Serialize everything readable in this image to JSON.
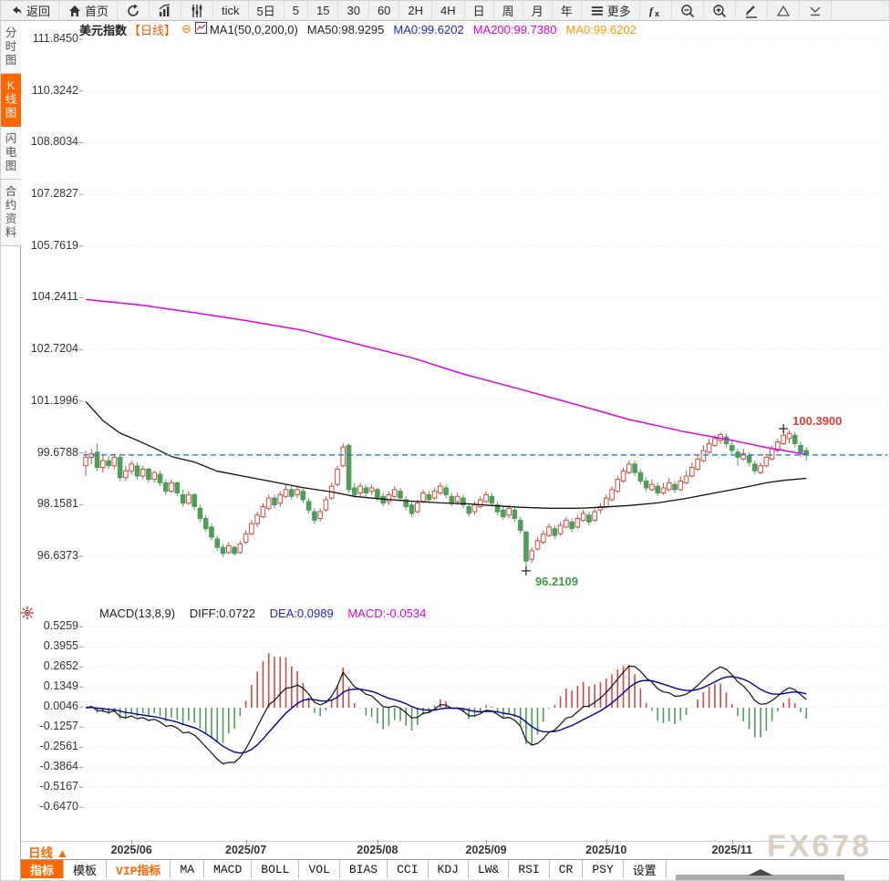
{
  "toolbar": {
    "items": [
      {
        "name": "back-button",
        "icon": "back-icon",
        "label": "返回"
      },
      {
        "name": "home-button",
        "icon": "home-icon",
        "label": "首页"
      },
      {
        "name": "refresh-button",
        "icon": "refresh-icon",
        "label": ""
      },
      {
        "name": "bar-chart-button",
        "icon": "bar-chart-icon",
        "label": ""
      },
      {
        "name": "kline-style-button",
        "icon": "kline-icon",
        "label": ""
      },
      {
        "name": "interval-tick",
        "label": "tick"
      },
      {
        "name": "interval-5d",
        "label": "5日"
      },
      {
        "name": "interval-5",
        "label": "5"
      },
      {
        "name": "interval-15",
        "label": "15"
      },
      {
        "name": "interval-30",
        "label": "30"
      },
      {
        "name": "interval-60",
        "label": "60"
      },
      {
        "name": "interval-2h",
        "label": "2H"
      },
      {
        "name": "interval-day",
        "label": "4H"
      },
      {
        "name": "interval-day2",
        "label": "日"
      },
      {
        "name": "interval-week",
        "label": "周"
      },
      {
        "name": "interval-month",
        "label": "月"
      },
      {
        "name": "interval-year",
        "label": "年"
      },
      {
        "name": "more-button",
        "icon": "menu-icon",
        "label": "更多"
      },
      {
        "name": "indicator-fx-button",
        "icon": "fx-icon",
        "label": ""
      },
      {
        "name": "zoom-out-button",
        "icon": "zoom-out-icon",
        "label": ""
      },
      {
        "name": "zoom-in-button",
        "icon": "zoom-in-icon",
        "label": ""
      },
      {
        "name": "draw-button",
        "icon": "pencil-icon",
        "label": ""
      },
      {
        "name": "triangle-up-button",
        "icon": "triangle-up-icon",
        "label": ""
      },
      {
        "name": "collapse-button",
        "icon": "collapse-icon",
        "label": ""
      }
    ]
  },
  "sidebar": {
    "items": [
      {
        "label": "分时图",
        "active": false
      },
      {
        "label": "K线图",
        "active": true
      },
      {
        "label": "闪电图",
        "active": false
      },
      {
        "label": "合约资料",
        "active": false
      }
    ]
  },
  "chart_header": {
    "symbol": "美元指数",
    "period": "【日线】",
    "collapse_glyph": "⊖",
    "ma_settings": "MA1(50,0,200,0)",
    "ma50": "MA50:98.9295",
    "ma0_blue": "MA0:99.6202",
    "ma200": "MA200:99.7380",
    "ma0_orange": "MA0:99.6202"
  },
  "macd_header": {
    "title": "MACD(13,8,9)",
    "diff": "DIFF:0.0722",
    "dea": "DEA:0.0989",
    "macd": "MACD:-0.0534"
  },
  "bottom": {
    "period_button": "日线 ▲",
    "tabs": [
      {
        "label": "指标",
        "style": "active"
      },
      {
        "label": "模板",
        "style": ""
      },
      {
        "label": "VIP指标",
        "style": "vip"
      },
      {
        "label": "MA",
        "style": ""
      },
      {
        "label": "MACD",
        "style": ""
      },
      {
        "label": "BOLL",
        "style": ""
      },
      {
        "label": "VOL",
        "style": ""
      },
      {
        "label": "BIAS",
        "style": ""
      },
      {
        "label": "CCI",
        "style": ""
      },
      {
        "label": "KDJ",
        "style": ""
      },
      {
        "label": "LW&",
        "style": ""
      },
      {
        "label": "RSI",
        "style": ""
      },
      {
        "label": "CR",
        "style": ""
      },
      {
        "label": "PSY",
        "style": ""
      }
    ],
    "settings_tab": "设置"
  },
  "watermark": "FX678",
  "colors": {
    "accent": "#ff6600",
    "up": "#cf4a41",
    "down": "#4f9d58",
    "ma50": "#111111",
    "ma200": "#e400e4",
    "dif_line": "#111111",
    "dea_line": "#00009e",
    "price_line": "#1e7ddd",
    "grid": "#efdede",
    "high_label": "#e03b32",
    "low_label": "#3f9a46"
  },
  "chart_data": {
    "type": "candlestick",
    "title": "美元指数 日线 (US Dollar Index, daily)",
    "y_axis_labels": [
      "111.8450",
      "110.3242",
      "108.8034",
      "107.2827",
      "105.7619",
      "104.2411",
      "102.7204",
      "101.1996",
      "99.6788",
      "98.1581",
      "96.6373"
    ],
    "y_axis_range": [
      96.6373,
      111.845
    ],
    "x_axis": {
      "month_labels": [
        "2025/06",
        "2025/07",
        "2025/08",
        "2025/09",
        "2025/10",
        "2025/11"
      ],
      "month_start_indices": [
        8,
        28,
        51,
        70,
        91,
        113
      ]
    },
    "current_price": 99.6202,
    "high_label": "100.3900",
    "low_label": "96.2109",
    "high_index": 122,
    "low_index": 77,
    "high_value": 100.39,
    "low_value": 96.21,
    "candles": [
      [
        99.3,
        99.75,
        99.0,
        99.55
      ],
      [
        99.55,
        99.8,
        99.35,
        99.65
      ],
      [
        99.7,
        99.95,
        99.15,
        99.25
      ],
      [
        99.25,
        99.6,
        99.1,
        99.45
      ],
      [
        99.45,
        99.6,
        99.2,
        99.3
      ],
      [
        99.3,
        99.65,
        99.2,
        99.55
      ],
      [
        99.55,
        99.6,
        98.85,
        98.95
      ],
      [
        98.95,
        99.3,
        98.85,
        99.15
      ],
      [
        99.15,
        99.45,
        99.05,
        99.35
      ],
      [
        99.3,
        99.4,
        98.9,
        99.0
      ],
      [
        99.0,
        99.3,
        98.9,
        99.2
      ],
      [
        99.2,
        99.25,
        98.8,
        98.9
      ],
      [
        98.9,
        99.15,
        98.8,
        99.1
      ],
      [
        99.05,
        99.15,
        98.7,
        98.8
      ],
      [
        98.8,
        98.9,
        98.45,
        98.55
      ],
      [
        98.55,
        98.9,
        98.5,
        98.8
      ],
      [
        98.8,
        98.85,
        98.4,
        98.5
      ],
      [
        98.45,
        98.6,
        98.1,
        98.2
      ],
      [
        98.2,
        98.55,
        98.15,
        98.45
      ],
      [
        98.45,
        98.5,
        98.0,
        98.1
      ],
      [
        98.05,
        98.15,
        97.65,
        97.75
      ],
      [
        97.75,
        97.85,
        97.35,
        97.45
      ],
      [
        97.5,
        97.6,
        97.1,
        97.2
      ],
      [
        97.15,
        97.25,
        96.8,
        96.9
      ],
      [
        96.9,
        97.0,
        96.64,
        96.72
      ],
      [
        96.75,
        97.05,
        96.7,
        96.95
      ],
      [
        96.9,
        96.95,
        96.66,
        96.72
      ],
      [
        96.75,
        97.1,
        96.7,
        97.0
      ],
      [
        97.05,
        97.4,
        97.0,
        97.3
      ],
      [
        97.3,
        97.7,
        97.25,
        97.6
      ],
      [
        97.6,
        97.95,
        97.5,
        97.85
      ],
      [
        97.8,
        98.2,
        97.75,
        98.1
      ],
      [
        98.05,
        98.45,
        98.0,
        98.35
      ],
      [
        98.35,
        98.45,
        98.05,
        98.15
      ],
      [
        98.2,
        98.55,
        98.1,
        98.45
      ],
      [
        98.4,
        98.75,
        98.35,
        98.6
      ],
      [
        98.6,
        98.7,
        98.3,
        98.4
      ],
      [
        98.45,
        98.7,
        98.35,
        98.6
      ],
      [
        98.55,
        98.65,
        98.2,
        98.3
      ],
      [
        98.25,
        98.35,
        97.9,
        98.0
      ],
      [
        97.95,
        98.05,
        97.6,
        97.7
      ],
      [
        97.75,
        98.05,
        97.65,
        97.95
      ],
      [
        98.0,
        98.4,
        97.95,
        98.3
      ],
      [
        98.35,
        98.8,
        98.3,
        98.7
      ],
      [
        98.75,
        99.3,
        98.7,
        99.2
      ],
      [
        99.3,
        99.97,
        99.25,
        99.85
      ],
      [
        99.9,
        99.95,
        98.5,
        98.6
      ],
      [
        98.65,
        98.8,
        98.35,
        98.45
      ],
      [
        98.5,
        98.8,
        98.4,
        98.7
      ],
      [
        98.65,
        98.75,
        98.4,
        98.5
      ],
      [
        98.55,
        98.75,
        98.45,
        98.65
      ],
      [
        98.6,
        98.65,
        98.25,
        98.35
      ],
      [
        98.4,
        98.5,
        98.1,
        98.2
      ],
      [
        98.25,
        98.55,
        98.15,
        98.45
      ],
      [
        98.4,
        98.7,
        98.35,
        98.6
      ],
      [
        98.55,
        98.65,
        98.25,
        98.35
      ],
      [
        98.3,
        98.4,
        98.0,
        98.1
      ],
      [
        98.15,
        98.25,
        97.8,
        97.9
      ],
      [
        97.95,
        98.3,
        97.9,
        98.2
      ],
      [
        98.25,
        98.6,
        98.2,
        98.5
      ],
      [
        98.45,
        98.55,
        98.2,
        98.3
      ],
      [
        98.35,
        98.65,
        98.3,
        98.55
      ],
      [
        98.5,
        98.8,
        98.45,
        98.7
      ],
      [
        98.65,
        98.75,
        98.35,
        98.45
      ],
      [
        98.4,
        98.5,
        98.1,
        98.2
      ],
      [
        98.25,
        98.5,
        98.15,
        98.4
      ],
      [
        98.35,
        98.45,
        98.05,
        98.15
      ],
      [
        98.1,
        98.2,
        97.8,
        97.9
      ],
      [
        97.95,
        98.25,
        97.85,
        98.15
      ],
      [
        98.1,
        98.4,
        98.05,
        98.3
      ],
      [
        98.25,
        98.55,
        98.2,
        98.45
      ],
      [
        98.4,
        98.5,
        98.1,
        98.2
      ],
      [
        98.15,
        98.25,
        97.85,
        97.95
      ],
      [
        98.0,
        98.1,
        97.7,
        97.8
      ],
      [
        97.85,
        98.15,
        97.75,
        98.05
      ],
      [
        98.0,
        98.1,
        97.65,
        97.75
      ],
      [
        97.7,
        97.8,
        97.3,
        97.4
      ],
      [
        97.35,
        97.4,
        96.21,
        96.5
      ],
      [
        96.55,
        96.9,
        96.45,
        96.8
      ],
      [
        96.85,
        97.2,
        96.8,
        97.1
      ],
      [
        97.05,
        97.4,
        97.0,
        97.3
      ],
      [
        97.25,
        97.6,
        97.2,
        97.5
      ],
      [
        97.45,
        97.55,
        97.15,
        97.25
      ],
      [
        97.3,
        97.65,
        97.25,
        97.55
      ],
      [
        97.5,
        97.8,
        97.45,
        97.7
      ],
      [
        97.65,
        97.75,
        97.35,
        97.45
      ],
      [
        97.5,
        97.85,
        97.45,
        97.75
      ],
      [
        97.7,
        98.0,
        97.65,
        97.9
      ],
      [
        97.85,
        97.95,
        97.55,
        97.65
      ],
      [
        97.7,
        98.05,
        97.65,
        97.95
      ],
      [
        98.0,
        98.2,
        97.9,
        98.1
      ],
      [
        98.1,
        98.45,
        98.05,
        98.35
      ],
      [
        98.3,
        98.7,
        98.25,
        98.6
      ],
      [
        98.55,
        99.0,
        98.5,
        98.9
      ],
      [
        98.85,
        99.25,
        98.8,
        99.15
      ],
      [
        99.1,
        99.45,
        99.05,
        99.35
      ],
      [
        99.35,
        99.45,
        99.0,
        99.1
      ],
      [
        99.1,
        99.2,
        98.75,
        98.85
      ],
      [
        98.85,
        98.95,
        98.55,
        98.65
      ],
      [
        98.6,
        98.9,
        98.55,
        98.75
      ],
      [
        98.7,
        98.8,
        98.4,
        98.5
      ],
      [
        98.5,
        98.8,
        98.45,
        98.65
      ],
      [
        98.6,
        98.95,
        98.55,
        98.8
      ],
      [
        98.75,
        98.85,
        98.5,
        98.6
      ],
      [
        98.6,
        99.0,
        98.55,
        98.85
      ],
      [
        98.8,
        99.15,
        98.75,
        99.0
      ],
      [
        99.0,
        99.4,
        98.95,
        99.25
      ],
      [
        99.2,
        99.65,
        99.15,
        99.5
      ],
      [
        99.45,
        99.9,
        99.4,
        99.75
      ],
      [
        99.7,
        100.1,
        99.65,
        99.95
      ],
      [
        99.9,
        100.2,
        99.85,
        100.1
      ],
      [
        100.05,
        100.28,
        99.95,
        100.22
      ],
      [
        100.15,
        100.25,
        99.85,
        99.95
      ],
      [
        99.9,
        100.05,
        99.65,
        99.75
      ],
      [
        99.7,
        99.8,
        99.3,
        99.55
      ],
      [
        99.5,
        99.8,
        99.45,
        99.65
      ],
      [
        99.6,
        99.7,
        99.3,
        99.4
      ],
      [
        99.35,
        99.45,
        99.05,
        99.15
      ],
      [
        99.1,
        99.4,
        99.05,
        99.3
      ],
      [
        99.3,
        99.65,
        99.25,
        99.55
      ],
      [
        99.5,
        99.9,
        99.45,
        99.8
      ],
      [
        99.75,
        100.1,
        99.7,
        100.0
      ],
      [
        99.95,
        100.39,
        99.9,
        100.2
      ],
      [
        100.1,
        100.35,
        99.95,
        100.25
      ],
      [
        100.2,
        100.3,
        99.85,
        99.95
      ],
      [
        99.9,
        100.0,
        99.55,
        99.7
      ],
      [
        99.75,
        99.85,
        99.45,
        99.62
      ]
    ],
    "ma50_anchors": [
      [
        0,
        101.19
      ],
      [
        3,
        100.63
      ],
      [
        6,
        100.26
      ],
      [
        9,
        100.05
      ],
      [
        12,
        99.82
      ],
      [
        15,
        99.57
      ],
      [
        19,
        99.41
      ],
      [
        23,
        99.14
      ],
      [
        28,
        98.98
      ],
      [
        33,
        98.82
      ],
      [
        38,
        98.66
      ],
      [
        43,
        98.53
      ],
      [
        47,
        98.4
      ],
      [
        52,
        98.32
      ],
      [
        57,
        98.26
      ],
      [
        62,
        98.21
      ],
      [
        67,
        98.18
      ],
      [
        71,
        98.13
      ],
      [
        76,
        98.08
      ],
      [
        81,
        98.05
      ],
      [
        86,
        98.05
      ],
      [
        90,
        98.08
      ],
      [
        95,
        98.13
      ],
      [
        100,
        98.21
      ],
      [
        105,
        98.34
      ],
      [
        110,
        98.5
      ],
      [
        115,
        98.66
      ],
      [
        119,
        98.8
      ],
      [
        122,
        98.87
      ],
      [
        126,
        98.93
      ]
    ],
    "ma200_anchors": [
      [
        0,
        104.19
      ],
      [
        10,
        104.02
      ],
      [
        19,
        103.8
      ],
      [
        28,
        103.57
      ],
      [
        38,
        103.28
      ],
      [
        47,
        102.9
      ],
      [
        57,
        102.48
      ],
      [
        66,
        102.0
      ],
      [
        76,
        101.55
      ],
      [
        86,
        101.09
      ],
      [
        95,
        100.66
      ],
      [
        105,
        100.29
      ],
      [
        113,
        100.05
      ],
      [
        119,
        99.84
      ],
      [
        126,
        99.63
      ]
    ],
    "macd": {
      "params": [
        13,
        8,
        9
      ],
      "diff": 0.0722,
      "dea": 0.0989,
      "macd": -0.0534,
      "y_axis_labels": [
        "0.5259",
        "0.3955",
        "0.2652",
        "0.1349",
        "0.0046",
        "-0.1257",
        "-0.2561",
        "-0.3864",
        "-0.5167",
        "-0.6470"
      ]
    }
  }
}
